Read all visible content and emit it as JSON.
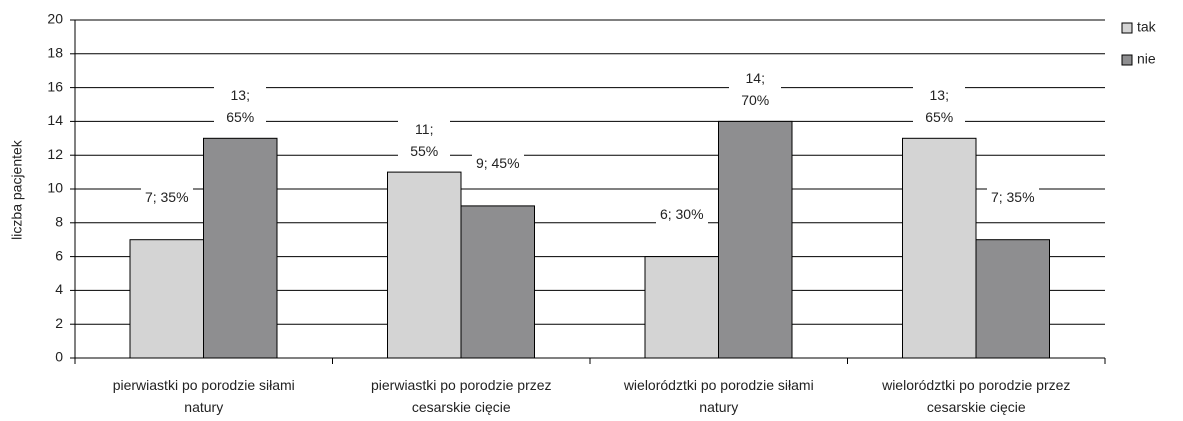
{
  "chart_data": {
    "type": "bar",
    "y_label": "liczba pacjentek",
    "categories": [
      "pierwiastki po porodzie siłami natury",
      "pierwiastki po porodzie przez cesarskie cięcie",
      "wielorództki po porodzie siłami natury",
      "wielorództki po porodzie przez cesarskie cięcie"
    ],
    "series": [
      {
        "name": "tak",
        "color": "#d4d4d4",
        "values": [
          7,
          11,
          6,
          13
        ],
        "value_labels": [
          "7; 35%",
          "11; 55%",
          "6; 30%",
          "13; 65%"
        ]
      },
      {
        "name": "nie",
        "color": "#8e8e90",
        "values": [
          13,
          9,
          14,
          7
        ],
        "value_labels": [
          "13; 65%",
          "9; 45%",
          "14; 70%",
          "7; 35%"
        ]
      }
    ],
    "ylim": [
      0,
      20
    ],
    "yticks": [
      0,
      2,
      4,
      6,
      8,
      10,
      12,
      14,
      16,
      18,
      20
    ],
    "grid": true,
    "legend": "right"
  }
}
